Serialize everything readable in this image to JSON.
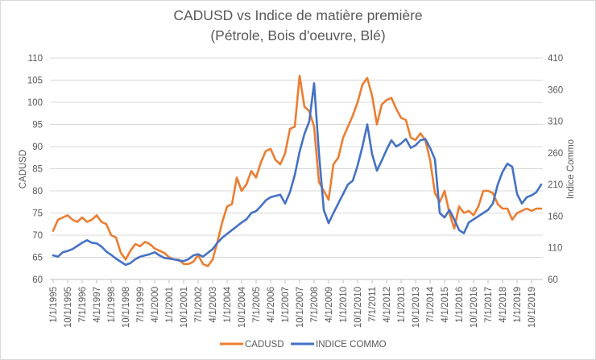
{
  "chart_data": {
    "type": "line",
    "title": [
      "CADUSD vs Indice de matière première",
      "(Pétrole, Bois d'oeuvre, Blé)"
    ],
    "ylabel": "CADUSD",
    "y2label": "Indice Commo",
    "ylim": [
      60,
      110
    ],
    "y2lim": [
      60,
      410
    ],
    "yticks": [
      "60",
      "65",
      "70",
      "75",
      "80",
      "85",
      "90",
      "95",
      "100",
      "105",
      "110"
    ],
    "y2ticks": [
      "60",
      "110",
      "160",
      "210",
      "260",
      "310",
      "360",
      "410"
    ],
    "xticks": [
      "1/1/1995",
      "10/1/1995",
      "7/1/1996",
      "4/1/1997",
      "1/1/1998",
      "10/1/1998",
      "7/1/1999",
      "4/1/2000",
      "1/1/2001",
      "10/1/2001",
      "7/1/2002",
      "4/1/2003",
      "1/1/2004",
      "10/1/2004",
      "7/1/2005",
      "4/1/2006",
      "1/1/2007",
      "10/1/2007",
      "7/1/2008",
      "4/1/2009",
      "1/1/2010",
      "10/1/2010",
      "7/1/2011",
      "4/1/2012",
      "1/1/2013",
      "10/1/2013",
      "7/1/2014",
      "4/1/2015",
      "1/1/2016",
      "10/1/2016",
      "7/1/2017",
      "4/1/2018",
      "1/1/2019",
      "10/1/2019"
    ],
    "x_start": "1/1/1995",
    "x_step_months": 3,
    "grid": true,
    "legend": "bottom",
    "series": [
      {
        "name": "CADUSD",
        "axis": "left",
        "color": "#ED7D31",
        "values": [
          71.0,
          73.5,
          74.0,
          74.5,
          73.5,
          73.0,
          74.0,
          73.0,
          73.5,
          74.5,
          73.0,
          72.5,
          70.0,
          69.5,
          66.0,
          64.5,
          66.5,
          68.0,
          67.5,
          68.5,
          68.0,
          67.0,
          66.5,
          66.0,
          65.0,
          64.5,
          64.5,
          63.5,
          63.5,
          64.0,
          65.5,
          63.5,
          63.0,
          64.5,
          68.5,
          73.0,
          76.5,
          77.0,
          83.0,
          80.0,
          81.5,
          84.5,
          83.0,
          86.5,
          89.0,
          89.5,
          87.0,
          86.0,
          88.5,
          94.0,
          94.5,
          106.0,
          99.0,
          98.0,
          94.5,
          82.0,
          80.0,
          78.0,
          86.0,
          87.5,
          92.0,
          94.5,
          97.0,
          100.0,
          104.0,
          105.5,
          101.5,
          95.0,
          99.5,
          100.5,
          101.0,
          98.5,
          96.5,
          96.0,
          92.0,
          91.5,
          93.0,
          91.5,
          87.0,
          79.5,
          77.5,
          80.0,
          75.0,
          71.5,
          76.5,
          75.0,
          75.5,
          74.5,
          76.5,
          80.0,
          80.0,
          79.5,
          77.0,
          76.0,
          76.0,
          73.5,
          75.0,
          75.5,
          76.0,
          75.5,
          76.0,
          76.0
        ]
      },
      {
        "name": "INDICE COMMO",
        "axis": "right",
        "color": "#4472C4",
        "values": [
          98,
          96,
          103,
          105,
          108,
          113,
          118,
          122,
          118,
          117,
          112,
          104,
          99,
          93,
          88,
          83,
          86,
          92,
          96,
          98,
          100,
          103,
          98,
          94,
          93,
          92,
          90,
          89,
          92,
          98,
          100,
          96,
          102,
          108,
          118,
          126,
          132,
          138,
          144,
          150,
          155,
          165,
          168,
          176,
          185,
          190,
          192,
          194,
          180,
          198,
          225,
          262,
          290,
          310,
          370,
          260,
          170,
          149,
          165,
          180,
          195,
          210,
          216,
          240,
          270,
          305,
          258,
          232,
          248,
          265,
          280,
          270,
          275,
          282,
          268,
          272,
          280,
          282,
          268,
          250,
          165,
          158,
          170,
          155,
          138,
          133,
          150,
          155,
          160,
          165,
          170,
          180,
          210,
          230,
          243,
          238,
          195,
          180,
          190,
          193,
          198,
          210
        ]
      }
    ]
  },
  "legend": {
    "items": [
      "CADUSD",
      "INDICE COMMO"
    ]
  }
}
